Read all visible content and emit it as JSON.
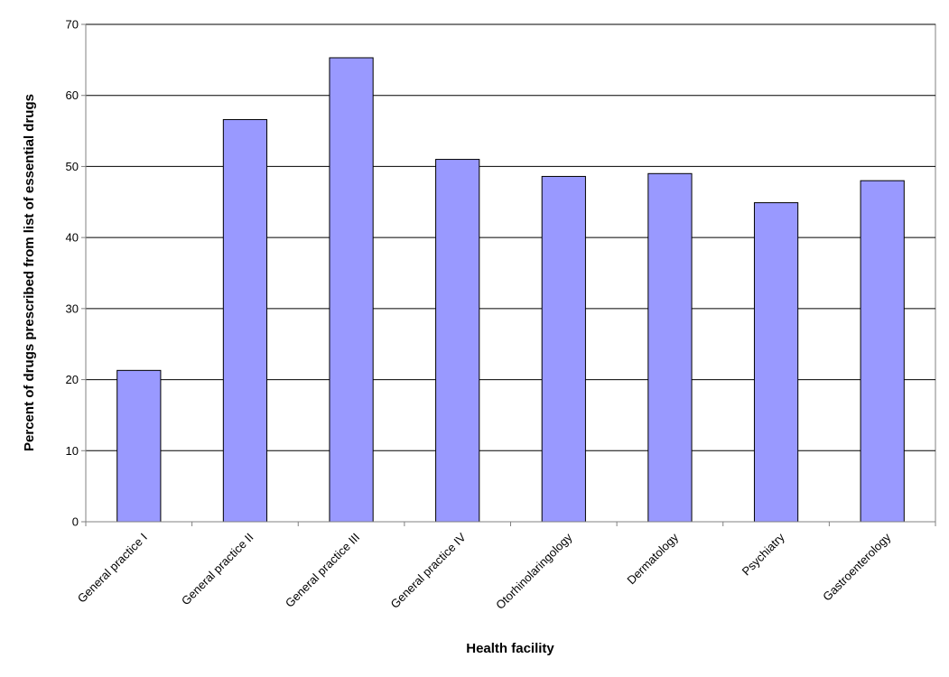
{
  "chart_data": {
    "type": "bar",
    "title": "",
    "xlabel": "Health facility",
    "ylabel": "Percent of drugs prescribed from list of essential drugs",
    "categories": [
      "General practice I",
      "General practice II",
      "General practice III",
      "General practice IV",
      "Otorhinolaringology",
      "Dermatology",
      "Psychiatry",
      "Gastroenterology"
    ],
    "values": [
      21.3,
      56.6,
      65.3,
      51.0,
      48.6,
      49.0,
      44.9,
      48.0
    ],
    "ylim": [
      0,
      70
    ],
    "yticks": [
      0,
      10,
      20,
      30,
      40,
      50,
      60,
      70
    ],
    "grid": true,
    "legend": "none",
    "colors": {
      "bar": "#9999FF",
      "bar_stroke": "#000000",
      "grid": "#000000",
      "axis": "#808080"
    }
  }
}
